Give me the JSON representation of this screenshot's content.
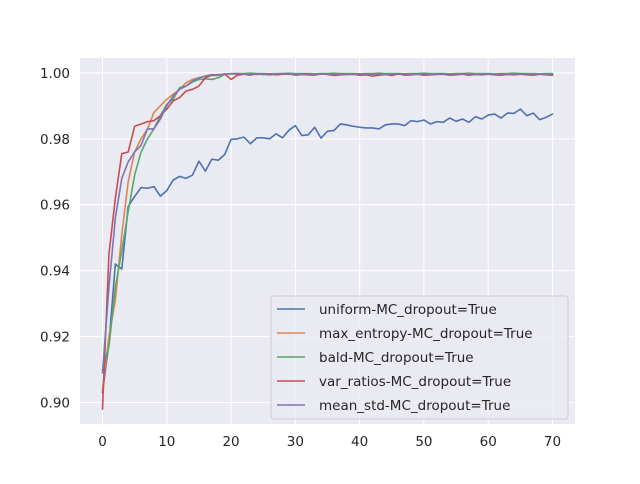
{
  "chart_data": {
    "type": "line",
    "title": "",
    "xlabel": "",
    "ylabel": "",
    "xlim": [
      -3.5,
      73.5
    ],
    "ylim": [
      0.8935,
      1.0045
    ],
    "x_ticks": [
      0,
      10,
      20,
      30,
      40,
      50,
      60,
      70
    ],
    "y_ticks": [
      0.9,
      0.92,
      0.94,
      0.96,
      0.98,
      1.0
    ],
    "y_tick_labels": [
      "0.90",
      "0.92",
      "0.94",
      "0.96",
      "0.98",
      "1.00"
    ],
    "grid": true,
    "legend_position": "lower-right",
    "x": [
      0,
      1,
      2,
      3,
      4,
      5,
      6,
      7,
      8,
      9,
      10,
      11,
      12,
      13,
      14,
      15,
      16,
      17,
      18,
      19,
      20,
      21,
      22,
      23,
      24,
      25,
      26,
      27,
      28,
      29,
      30,
      31,
      32,
      33,
      34,
      35,
      36,
      37,
      38,
      39,
      40,
      41,
      42,
      43,
      44,
      45,
      46,
      47,
      48,
      49,
      50,
      51,
      52,
      53,
      54,
      55,
      56,
      57,
      58,
      59,
      60,
      61,
      62,
      63,
      64,
      65,
      66,
      67,
      68,
      69,
      70
    ],
    "series": [
      {
        "name": "uniform-MC_dropout=True",
        "color": "#4c72b0",
        "values": [
          0.903,
          0.918,
          0.942,
          0.9405,
          0.9595,
          0.9625,
          0.9652,
          0.965,
          0.9655,
          0.9626,
          0.9643,
          0.9675,
          0.9686,
          0.968,
          0.969,
          0.9732,
          0.9702,
          0.9738,
          0.9735,
          0.9752,
          0.9798,
          0.98,
          0.9805,
          0.9785,
          0.9803,
          0.9803,
          0.98,
          0.9815,
          0.9803,
          0.9826,
          0.984,
          0.981,
          0.9812,
          0.9835,
          0.9802,
          0.9823,
          0.9825,
          0.9845,
          0.9842,
          0.9838,
          0.9835,
          0.9833,
          0.9833,
          0.983,
          0.9842,
          0.9845,
          0.9845,
          0.984,
          0.9855,
          0.9852,
          0.9857,
          0.9845,
          0.9852,
          0.985,
          0.9863,
          0.9853,
          0.986,
          0.985,
          0.9867,
          0.986,
          0.9872,
          0.9875,
          0.9863,
          0.9878,
          0.9877,
          0.989,
          0.987,
          0.9878,
          0.9858,
          0.9865,
          0.9875
        ]
      },
      {
        "name": "max_entropy-MC_dropout=True",
        "color": "#dd8452",
        "values": [
          0.904,
          0.92,
          0.931,
          0.951,
          0.967,
          0.976,
          0.98,
          0.983,
          0.988,
          0.99,
          0.992,
          0.9935,
          0.995,
          0.997,
          0.998,
          0.9985,
          0.999,
          0.9992,
          0.9995,
          0.9996,
          0.9997,
          0.9995,
          0.9996,
          0.9997,
          0.9995,
          0.9996,
          0.9995,
          0.9997,
          0.9996,
          0.9996,
          0.9997,
          0.9995,
          0.9996,
          0.9996,
          0.9997,
          0.9996,
          0.9996,
          0.9997,
          0.9995,
          0.9996,
          0.9996,
          0.9997,
          0.9996,
          0.9995,
          0.9996,
          0.9997,
          0.9996,
          0.9996,
          0.9995,
          0.9996,
          0.9997,
          0.9996,
          0.9996,
          0.9997,
          0.9995,
          0.9996,
          0.9996,
          0.9997,
          0.9996,
          0.9995,
          0.9996,
          0.9997,
          0.9996,
          0.9996,
          0.9995,
          0.9996,
          0.9997,
          0.9996,
          0.9996,
          0.9995,
          0.9996
        ]
      },
      {
        "name": "bald-MC_dropout=True",
        "color": "#55a868",
        "values": [
          0.91,
          0.917,
          0.935,
          0.946,
          0.958,
          0.969,
          0.976,
          0.98,
          0.983,
          0.987,
          0.9905,
          0.992,
          0.9955,
          0.996,
          0.9972,
          0.998,
          0.9982,
          0.998,
          0.9985,
          0.9995,
          0.9998,
          0.9998,
          0.9998,
          0.9999,
          0.9998,
          0.9998,
          0.9997,
          0.9998,
          0.9998,
          0.9999,
          0.9998,
          0.9998,
          0.9998,
          0.9997,
          0.9998,
          0.9998,
          0.9999,
          0.9998,
          0.9998,
          0.9998,
          0.9997,
          0.9998,
          0.9998,
          0.9999,
          0.9998,
          0.9998,
          0.9998,
          0.9997,
          0.9998,
          0.9998,
          0.9999,
          0.9998,
          0.9998,
          0.9998,
          0.9997,
          0.9998,
          0.9998,
          0.9999,
          0.9998,
          0.9998,
          0.9998,
          0.9997,
          0.9998,
          0.9998,
          0.9999,
          0.9998,
          0.9998,
          0.9998,
          0.9997,
          0.9998,
          0.9998
        ]
      },
      {
        "name": "var_ratios-MC_dropout=True",
        "color": "#c44e52",
        "values": [
          0.898,
          0.945,
          0.962,
          0.9755,
          0.976,
          0.9838,
          0.9845,
          0.9852,
          0.9855,
          0.987,
          0.989,
          0.9915,
          0.9925,
          0.9945,
          0.995,
          0.996,
          0.9985,
          0.9993,
          0.9992,
          0.9997,
          0.998,
          0.9993,
          0.9996,
          0.9993,
          0.9997,
          0.9995,
          0.9997,
          0.9994,
          0.9996,
          0.9997,
          0.9993,
          0.9995,
          0.9994,
          0.9993,
          0.9997,
          0.9995,
          0.9992,
          0.9994,
          0.9995,
          0.9996,
          0.9993,
          0.9994,
          0.999,
          0.9993,
          0.9995,
          0.9992,
          0.9997,
          0.9993,
          0.9994,
          0.9996,
          0.9993,
          0.9994,
          0.9995,
          0.9996,
          0.9993,
          0.9994,
          0.9996,
          0.9993,
          0.9995,
          0.9994,
          0.9996,
          0.9994,
          0.9993,
          0.9995,
          0.9994,
          0.9996,
          0.9994,
          0.9993,
          0.9996,
          0.9994,
          0.9993
        ]
      },
      {
        "name": "mean_std-MC_dropout=True",
        "color": "#8172b3",
        "values": [
          0.909,
          0.935,
          0.956,
          0.968,
          0.973,
          0.976,
          0.978,
          0.983,
          0.983,
          0.986,
          0.99,
          0.993,
          0.995,
          0.996,
          0.9975,
          0.9985,
          0.999,
          0.9995,
          0.9993,
          0.9996,
          0.9997,
          0.9998,
          0.9996,
          0.9995,
          0.9997,
          0.9996,
          0.9994,
          0.9996,
          0.9998,
          0.9996,
          0.9995,
          0.9996,
          0.9997,
          0.9995,
          0.9996,
          0.9997,
          0.9995,
          0.9996,
          0.9996,
          0.9995,
          0.9997,
          0.9996,
          0.9996,
          0.9997,
          0.9995,
          0.9996,
          0.9997,
          0.9996,
          0.9996,
          0.9995,
          0.9997,
          0.9996,
          0.9996,
          0.9997,
          0.9995,
          0.9996,
          0.9997,
          0.9996,
          0.9995,
          0.9996,
          0.9996,
          0.9995,
          0.9997,
          0.9996,
          0.9996,
          0.9997,
          0.9996,
          0.9995,
          0.9996,
          0.9996,
          0.9995
        ]
      }
    ]
  }
}
